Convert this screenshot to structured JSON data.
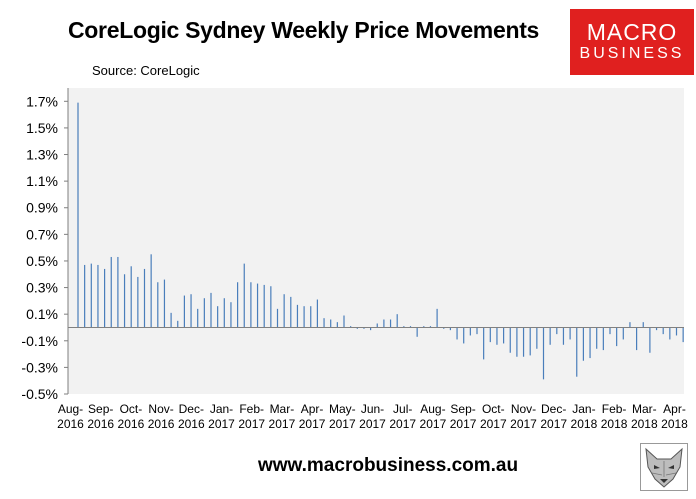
{
  "header": {
    "title": "CoreLogic Sydney Weekly Price Movements",
    "source": "Source: CoreLogic"
  },
  "logo": {
    "line1": "MACRO",
    "line2": "BUSINESS"
  },
  "footer": {
    "url": "www.macrobusiness.com.au"
  },
  "colors": {
    "bar": "#4a7ebb",
    "logo_bg": "#e0201f",
    "plot_bg": "#f2f2f2"
  },
  "icons": {
    "footer": "fox-head-icon"
  },
  "chart_data": {
    "type": "bar",
    "title": "CoreLogic Sydney Weekly Price Movements",
    "ylim": [
      -0.5,
      1.8
    ],
    "yticks": [
      -0.5,
      -0.3,
      -0.1,
      0.1,
      0.3,
      0.5,
      0.7,
      0.9,
      1.1,
      1.3,
      1.5,
      1.7
    ],
    "ytick_labels": [
      "-0.5%",
      "-0.3%",
      "-0.1%",
      "0.1%",
      "0.3%",
      "0.5%",
      "0.7%",
      "0.9%",
      "1.1%",
      "1.3%",
      "1.5%",
      "1.7%"
    ],
    "xtick_labels": [
      [
        "Aug-",
        "2016"
      ],
      [
        "Sep-",
        "2016"
      ],
      [
        "Oct-",
        "2016"
      ],
      [
        "Nov-",
        "2016"
      ],
      [
        "Dec-",
        "2016"
      ],
      [
        "Jan-",
        "2017"
      ],
      [
        "Feb-",
        "2017"
      ],
      [
        "Mar-",
        "2017"
      ],
      [
        "Apr-",
        "2017"
      ],
      [
        "May-",
        "2017"
      ],
      [
        "Jun-",
        "2017"
      ],
      [
        "Jul-",
        "2017"
      ],
      [
        "Aug-",
        "2017"
      ],
      [
        "Sep-",
        "2017"
      ],
      [
        "Oct-",
        "2017"
      ],
      [
        "Nov-",
        "2017"
      ],
      [
        "Dec-",
        "2017"
      ],
      [
        "Jan-",
        "2018"
      ],
      [
        "Feb-",
        "2018"
      ],
      [
        "Mar-",
        "2018"
      ],
      [
        "Apr-",
        "2018"
      ]
    ],
    "grid": false,
    "legend": "none",
    "values": [
      1.69,
      0.47,
      0.48,
      0.47,
      0.44,
      0.53,
      0.53,
      0.4,
      0.46,
      0.38,
      0.44,
      0.55,
      0.34,
      0.36,
      0.11,
      0.05,
      0.24,
      0.25,
      0.14,
      0.22,
      0.26,
      0.16,
      0.22,
      0.19,
      0.34,
      0.48,
      0.34,
      0.33,
      0.32,
      0.31,
      0.14,
      0.25,
      0.23,
      0.17,
      0.16,
      0.16,
      0.21,
      0.07,
      0.06,
      0.04,
      0.09,
      0.01,
      -0.01,
      -0.01,
      -0.02,
      0.03,
      0.06,
      0.06,
      0.1,
      0.01,
      0.01,
      -0.07,
      0.01,
      0.01,
      0.14,
      -0.01,
      -0.02,
      -0.09,
      -0.12,
      -0.06,
      -0.05,
      -0.24,
      -0.11,
      -0.13,
      -0.12,
      -0.19,
      -0.22,
      -0.22,
      -0.21,
      -0.16,
      -0.39,
      -0.13,
      -0.05,
      -0.13,
      -0.09,
      -0.37,
      -0.25,
      -0.23,
      -0.16,
      -0.17,
      -0.05,
      -0.14,
      -0.09,
      0.04,
      -0.17,
      0.04,
      -0.19,
      -0.02,
      -0.05,
      -0.09,
      -0.06,
      -0.11
    ]
  }
}
